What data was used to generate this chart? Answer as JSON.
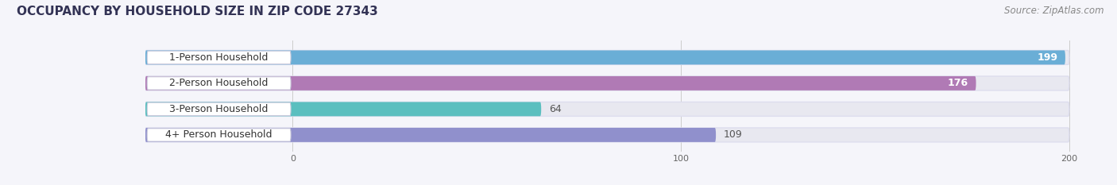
{
  "title": "OCCUPANCY BY HOUSEHOLD SIZE IN ZIP CODE 27343",
  "source": "Source: ZipAtlas.com",
  "categories": [
    "1-Person Household",
    "2-Person Household",
    "3-Person Household",
    "4+ Person Household"
  ],
  "values": [
    199,
    176,
    64,
    109
  ],
  "bar_colors": [
    "#6aaed6",
    "#b07ab5",
    "#5bbfbf",
    "#9090cc"
  ],
  "xlim_max": 200,
  "xticks": [
    0,
    100,
    200
  ],
  "background_color": "#f5f5fa",
  "bar_bg_color": "#e8e8f0",
  "title_fontsize": 11,
  "source_fontsize": 8.5,
  "label_fontsize": 9,
  "value_fontsize": 9,
  "value_label_inside": [
    true,
    true,
    false,
    false
  ],
  "value_label_colors_inside": [
    "#ffffff",
    "#ffffff",
    "#555555",
    "#555555"
  ]
}
